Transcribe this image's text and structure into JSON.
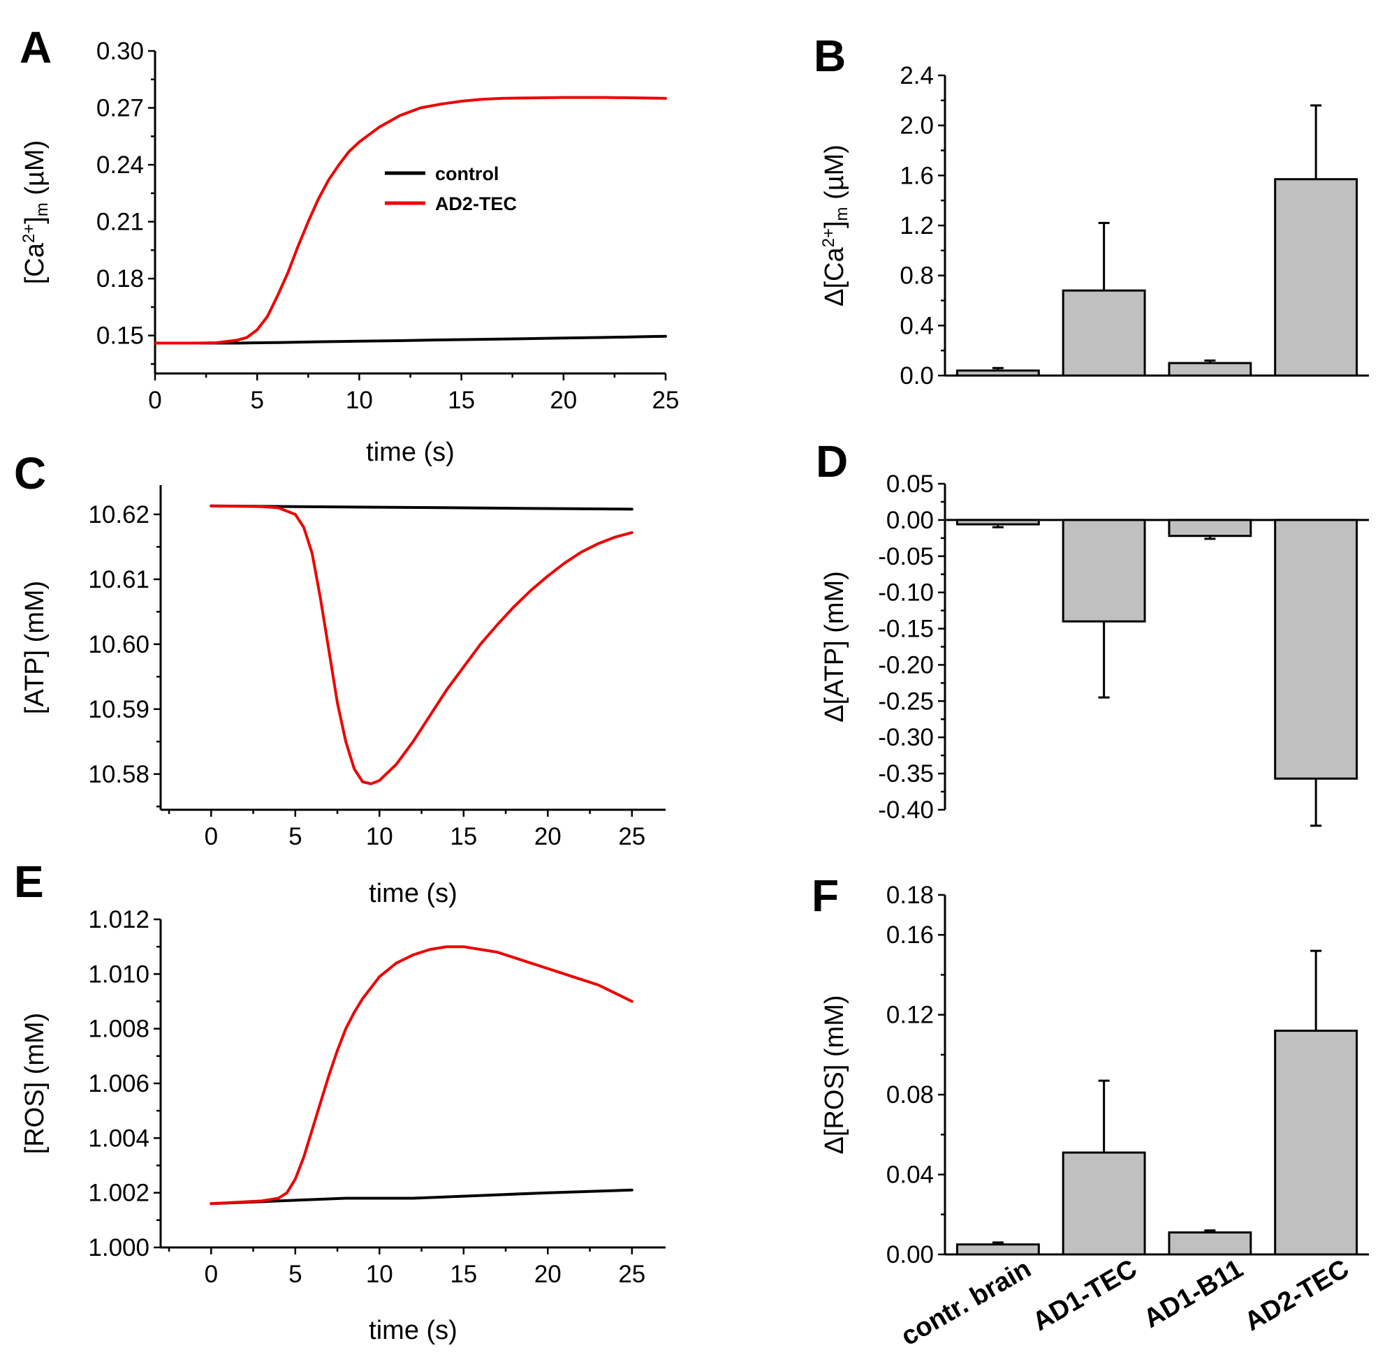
{
  "colors": {
    "control": "#000000",
    "ad2tec": "#ee0000",
    "bar_fill": "#c0c0c0",
    "axis": "#000000"
  },
  "chart_data": [
    {
      "id": "A",
      "panel_label": "A",
      "type": "line",
      "xlabel": "time (s)",
      "ylabel": "[Ca2+]m (µM)",
      "ylabel_parts": {
        "main": "[Ca",
        "sup": "2+",
        "close": "]",
        "sub": "m",
        "unit": " (µM)"
      },
      "xlim": [
        0,
        25
      ],
      "ylim": [
        0.13,
        0.3
      ],
      "xticks": [
        0,
        5,
        10,
        15,
        20,
        25
      ],
      "xtick_labels": [
        "0",
        "5",
        "10",
        "15",
        "20",
        "25"
      ],
      "yticks": [
        0.15,
        0.18,
        0.21,
        0.24,
        0.27,
        0.3
      ],
      "ytick_labels": [
        "0.15",
        "0.18",
        "0.21",
        "0.24",
        "0.27",
        "0.30"
      ],
      "legend": {
        "position": "upper-middle",
        "entries": [
          {
            "label": "control",
            "color": "#000000"
          },
          {
            "label": "AD2-TEC",
            "color": "#ee0000"
          }
        ]
      },
      "series": [
        {
          "name": "control",
          "color": "#000000",
          "x": [
            0,
            2,
            4,
            6,
            8,
            10,
            12,
            14,
            16,
            18,
            20,
            22,
            24,
            25
          ],
          "y": [
            0.146,
            0.146,
            0.146,
            0.1463,
            0.1467,
            0.147,
            0.1473,
            0.1477,
            0.148,
            0.1483,
            0.1487,
            0.149,
            0.1494,
            0.1496
          ]
        },
        {
          "name": "AD2-TEC",
          "color": "#ee0000",
          "x": [
            0,
            2,
            3,
            4,
            4.5,
            5,
            5.5,
            6,
            6.5,
            7,
            7.5,
            8,
            8.5,
            9,
            9.5,
            10,
            11,
            12,
            13,
            14,
            15,
            16,
            17,
            18,
            20,
            22,
            24,
            25
          ],
          "y": [
            0.146,
            0.146,
            0.1462,
            0.1475,
            0.149,
            0.153,
            0.16,
            0.171,
            0.183,
            0.197,
            0.21,
            0.222,
            0.232,
            0.24,
            0.247,
            0.252,
            0.26,
            0.266,
            0.27,
            0.272,
            0.2735,
            0.2745,
            0.275,
            0.2752,
            0.2755,
            0.2755,
            0.2752,
            0.275
          ]
        }
      ]
    },
    {
      "id": "B",
      "panel_label": "B",
      "type": "bar",
      "ylabel": "Δ[Ca2+]m (µM)",
      "ylabel_parts": {
        "main": "Δ[Ca",
        "sup": "2+",
        "close": "]",
        "sub": "m",
        "unit": " (µM)"
      },
      "categories": [
        "contr. brain",
        "AD1-TEC",
        "AD1-B11",
        "AD2-TEC"
      ],
      "values": [
        0.04,
        0.68,
        0.1,
        1.57
      ],
      "errors": [
        0.02,
        0.54,
        0.02,
        0.59
      ],
      "ylim": [
        0,
        2.4
      ],
      "yticks": [
        0.0,
        0.4,
        0.8,
        1.2,
        1.6,
        2.0,
        2.4
      ],
      "ytick_labels": [
        "0.0",
        "0.4",
        "0.8",
        "1.2",
        "1.6",
        "2.0",
        "2.4"
      ]
    },
    {
      "id": "C",
      "panel_label": "C",
      "type": "line",
      "xlabel": "time (s)",
      "ylabel": "[ATP] (mM)",
      "xlim": [
        -3,
        27
      ],
      "ylim": [
        10.5745,
        10.6245
      ],
      "xticks": [
        0,
        5,
        10,
        15,
        20,
        25
      ],
      "xtick_labels": [
        "0",
        "5",
        "10",
        "15",
        "20",
        "25"
      ],
      "yticks": [
        10.58,
        10.59,
        10.6,
        10.61,
        10.62
      ],
      "ytick_labels": [
        "10.58",
        "10.59",
        "10.60",
        "10.61",
        "10.62"
      ],
      "series": [
        {
          "name": "control",
          "color": "#000000",
          "x": [
            0,
            5,
            10,
            15,
            20,
            25
          ],
          "y": [
            10.6213,
            10.6212,
            10.6211,
            10.621,
            10.6209,
            10.6208
          ]
        },
        {
          "name": "AD2-TEC",
          "color": "#ee0000",
          "x": [
            0,
            3,
            4,
            5,
            5.5,
            6,
            6.5,
            7,
            7.5,
            8,
            8.5,
            9,
            9.5,
            10,
            11,
            12,
            13,
            14,
            15,
            16,
            17,
            18,
            19,
            20,
            21,
            22,
            23,
            24,
            25
          ],
          "y": [
            10.6213,
            10.6212,
            10.621,
            10.62,
            10.618,
            10.614,
            10.607,
            10.599,
            10.591,
            10.585,
            10.5808,
            10.5788,
            10.5785,
            10.579,
            10.5815,
            10.585,
            10.589,
            10.593,
            10.5965,
            10.6,
            10.603,
            10.6058,
            10.6083,
            10.6105,
            10.6125,
            10.6142,
            10.6155,
            10.6165,
            10.6172
          ]
        }
      ]
    },
    {
      "id": "D",
      "panel_label": "D",
      "type": "bar",
      "ylabel": "Δ[ATP] (mM)",
      "categories": [
        "contr. brain",
        "AD1-TEC",
        "AD1-B11",
        "AD2-TEC"
      ],
      "values": [
        -0.006,
        -0.14,
        -0.022,
        -0.357
      ],
      "errors": [
        0.004,
        0.105,
        0.004,
        0.065
      ],
      "ylim": [
        -0.4,
        0.05
      ],
      "yticks": [
        0.05,
        0.0,
        -0.05,
        -0.1,
        -0.15,
        -0.2,
        -0.25,
        -0.3,
        -0.35,
        -0.4
      ],
      "ytick_labels": [
        "0.05",
        "0.00",
        "-0.05",
        "-0.10",
        "-0.15",
        "-0.20",
        "-0.25",
        "-0.30",
        "-0.35",
        "-0.40"
      ]
    },
    {
      "id": "E",
      "panel_label": "E",
      "type": "line",
      "xlabel": "time (s)",
      "ylabel": "[ROS] (mM)",
      "xlim": [
        -3,
        27
      ],
      "ylim": [
        1.0,
        1.012
      ],
      "xticks": [
        0,
        5,
        10,
        15,
        20,
        25
      ],
      "xtick_labels": [
        "0",
        "5",
        "10",
        "15",
        "20",
        "25"
      ],
      "yticks": [
        1.0,
        1.002,
        1.004,
        1.006,
        1.008,
        1.01,
        1.012
      ],
      "ytick_labels": [
        "1.000",
        "1.002",
        "1.004",
        "1.006",
        "1.008",
        "1.010",
        "1.012"
      ],
      "series": [
        {
          "name": "control",
          "color": "#000000",
          "x": [
            0,
            4,
            8,
            12,
            16,
            20,
            25
          ],
          "y": [
            1.0016,
            1.0017,
            1.0018,
            1.0018,
            1.0019,
            1.002,
            1.0021
          ]
        },
        {
          "name": "AD2-TEC",
          "color": "#ee0000",
          "x": [
            0,
            3,
            4,
            4.5,
            5,
            5.5,
            6,
            6.5,
            7,
            7.5,
            8,
            8.5,
            9,
            10,
            11,
            12,
            13,
            14,
            15,
            16,
            17,
            18,
            19,
            20,
            21,
            22,
            23,
            24,
            25
          ],
          "y": [
            1.0016,
            1.0017,
            1.0018,
            1.002,
            1.0025,
            1.0033,
            1.0043,
            1.0053,
            1.0063,
            1.0072,
            1.008,
            1.0086,
            1.0091,
            1.0099,
            1.0104,
            1.0107,
            1.0109,
            1.011,
            1.011,
            1.0109,
            1.0108,
            1.0106,
            1.0104,
            1.0102,
            1.01,
            1.0098,
            1.0096,
            1.0093,
            1.009
          ]
        }
      ]
    },
    {
      "id": "F",
      "panel_label": "F",
      "type": "bar",
      "ylabel": "Δ[ROS] (mM)",
      "categories": [
        "contr. brain",
        "AD1-TEC",
        "AD1-B11",
        "AD2-TEC"
      ],
      "values": [
        0.005,
        0.051,
        0.011,
        0.112
      ],
      "errors": [
        0.001,
        0.036,
        0.001,
        0.04
      ],
      "ylim": [
        0,
        0.18
      ],
      "yticks": [
        0.0,
        0.04,
        0.08,
        0.12,
        0.16,
        0.18
      ],
      "ytick_labels": [
        "0.00",
        "0.04",
        "0.08",
        "0.12",
        "0.16",
        "0.18"
      ]
    }
  ]
}
